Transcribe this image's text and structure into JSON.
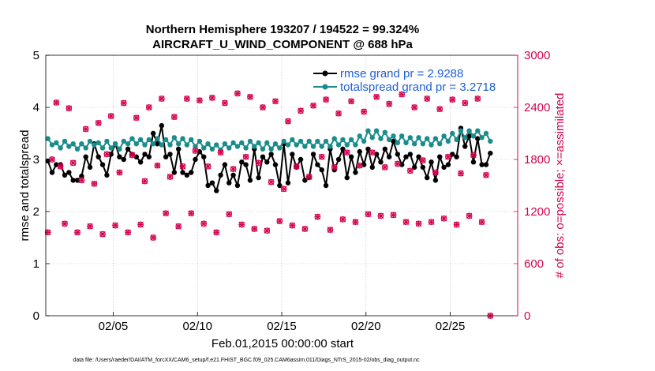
{
  "chart_data": {
    "type": "line",
    "title": "Northern Hemisphere 193207 / 194522 = 99.324%",
    "subtitle": "AIRCRAFT_U_WIND_COMPONENT @ 688 hPa",
    "xlabel": "Feb.01,2015 00:00:00 start",
    "ylabel": "rmse and totalspread",
    "ylabel_right": "# of obs: o=possible; ×=assimilated",
    "xlim": [
      1,
      29
    ],
    "ylim": [
      0,
      5
    ],
    "ylim_right": [
      0,
      3000
    ],
    "x_ticks": [
      5,
      10,
      15,
      20,
      25
    ],
    "x_tick_labels": [
      "02/05",
      "02/10",
      "02/15",
      "02/20",
      "02/25"
    ],
    "y_ticks": [
      0,
      1,
      2,
      3,
      4,
      5
    ],
    "y_tick_labels": [
      "0",
      "1",
      "2",
      "3",
      "4",
      "5"
    ],
    "y_right_ticks": [
      0,
      600,
      1200,
      1800,
      2400,
      3000
    ],
    "y_right_tick_labels": [
      "0",
      "600",
      "1200",
      "1800",
      "2400",
      "3000"
    ],
    "grid": true,
    "legend_position": "top-right",
    "time_step_days": 0.25,
    "x_start": 1.125,
    "series": [
      {
        "name": "rmse grand pr = 2.9288",
        "axis": "left",
        "color": "#000000",
        "marker": "filled-circle",
        "values": [
          2.97,
          2.75,
          2.9,
          2.9,
          2.7,
          2.75,
          2.6,
          2.6,
          2.68,
          3.05,
          2.85,
          3.3,
          3.05,
          2.9,
          2.7,
          3.1,
          3.3,
          3.05,
          3.0,
          3.2,
          3.1,
          3.05,
          2.95,
          3.1,
          3.05,
          3.5,
          3.3,
          3.65,
          3.05,
          3.1,
          2.75,
          3.2,
          2.75,
          2.7,
          2.75,
          3.0,
          3.15,
          3.05,
          2.5,
          2.55,
          2.4,
          2.7,
          2.9,
          2.55,
          2.7,
          2.5,
          2.95,
          2.9,
          2.6,
          3.2,
          2.65,
          3.05,
          2.95,
          3.1,
          2.9,
          2.5,
          3.3,
          2.55,
          3.1,
          2.85,
          3.0,
          2.6,
          2.65,
          3.1,
          2.9,
          2.8,
          2.5,
          3.2,
          2.8,
          3.0,
          3.2,
          2.65,
          3.05,
          2.75,
          3.15,
          2.9,
          3.2,
          2.85,
          3.1,
          2.95,
          3.2,
          3.05,
          3.35,
          3.1,
          2.9,
          3.05,
          3.1,
          2.85,
          3.05,
          2.85,
          2.65,
          2.95,
          2.6,
          3.05,
          2.85,
          2.9,
          3.1,
          3.05,
          3.6,
          3.25,
          3.45,
          2.95,
          3.4,
          2.9,
          2.9,
          3.12
        ]
      },
      {
        "name": "totalspread grand pr = 3.2718",
        "axis": "left",
        "color": "#1a8c8c",
        "marker": "filled-circle",
        "values": [
          3.4,
          3.28,
          3.32,
          3.22,
          3.35,
          3.25,
          3.3,
          3.2,
          3.3,
          3.22,
          3.35,
          3.28,
          3.32,
          3.22,
          3.35,
          3.22,
          3.3,
          3.2,
          3.35,
          3.3,
          3.4,
          3.3,
          3.38,
          3.28,
          3.38,
          3.3,
          3.4,
          3.28,
          3.38,
          3.28,
          3.42,
          3.3,
          3.4,
          3.28,
          3.38,
          3.25,
          3.35,
          3.22,
          3.3,
          3.2,
          3.28,
          3.18,
          3.3,
          3.22,
          3.32,
          3.25,
          3.32,
          3.22,
          3.35,
          3.25,
          3.32,
          3.2,
          3.32,
          3.2,
          3.3,
          3.22,
          3.35,
          3.28,
          3.38,
          3.28,
          3.35,
          3.25,
          3.35,
          3.25,
          3.35,
          3.25,
          3.35,
          3.25,
          3.4,
          3.28,
          3.38,
          3.28,
          3.38,
          3.28,
          3.45,
          3.35,
          3.55,
          3.42,
          3.55,
          3.4,
          3.52,
          3.38,
          3.45,
          3.32,
          3.45,
          3.32,
          3.42,
          3.3,
          3.42,
          3.3,
          3.4,
          3.28,
          3.4,
          3.3,
          3.45,
          3.35,
          3.5,
          3.38,
          3.55,
          3.42,
          3.55,
          3.45,
          3.55,
          3.42,
          3.5,
          3.35
        ]
      },
      {
        "name": "obs possible",
        "axis": "right",
        "color": "#d4004f",
        "marker": "circle",
        "values": [
          960,
          1800,
          2455,
          1720,
          1060,
          2390,
          1760,
          960,
          1560,
          2150,
          1030,
          1520,
          2220,
          940,
          1860,
          2300,
          1040,
          1650,
          2450,
          960,
          1850,
          2280,
          1050,
          1550,
          2400,
          900,
          1730,
          2500,
          1180,
          1600,
          2290,
          1030,
          1720,
          2500,
          1180,
          1900,
          2480,
          1060,
          1720,
          2510,
          960,
          1880,
          2450,
          1170,
          1690,
          2560,
          1050,
          1830,
          2520,
          1000,
          1760,
          2400,
          980,
          1540,
          2470,
          1090,
          1460,
          2240,
          1040,
          1720,
          2360,
          1000,
          1600,
          2420,
          1140,
          1830,
          2490,
          990,
          1710,
          2330,
          1110,
          1880,
          2470,
          1080,
          1730,
          2350,
          1170,
          1880,
          2520,
          1150,
          1710,
          2440,
          1160,
          1750,
          2550,
          1080,
          1670,
          2400,
          1060,
          1790,
          2500,
          1080,
          1650,
          2380,
          1120,
          1830,
          2490,
          1050,
          1640,
          2450,
          1150,
          1850,
          2500,
          1080,
          1620,
          0
        ]
      },
      {
        "name": "obs assimilated",
        "axis": "right",
        "color": "#d4004f",
        "marker": "x",
        "values": [
          960,
          1800,
          2455,
          1720,
          1060,
          2390,
          1760,
          960,
          1560,
          2150,
          1030,
          1520,
          2220,
          940,
          1860,
          2300,
          1040,
          1650,
          2450,
          960,
          1850,
          2280,
          1050,
          1550,
          2400,
          900,
          1730,
          2500,
          1180,
          1600,
          2290,
          1030,
          1720,
          2500,
          1180,
          1900,
          2480,
          1060,
          1720,
          2510,
          960,
          1880,
          2450,
          1170,
          1690,
          2560,
          1050,
          1830,
          2520,
          1000,
          1760,
          2400,
          980,
          1540,
          2470,
          1090,
          1460,
          2240,
          1040,
          1720,
          2360,
          1000,
          1600,
          2420,
          1140,
          1830,
          2490,
          990,
          1710,
          2330,
          1110,
          1880,
          2470,
          1080,
          1730,
          2350,
          1170,
          1880,
          2520,
          1150,
          1710,
          2440,
          1160,
          1750,
          2550,
          1080,
          1670,
          2400,
          1060,
          1790,
          2500,
          1080,
          1650,
          2380,
          1120,
          1830,
          2490,
          1050,
          1640,
          2450,
          1150,
          1850,
          2500,
          1080,
          1620,
          0
        ]
      }
    ],
    "footer": "data file: /Users/raeder/DAI/ATM_forcXX/CAM6_setup/f.e21.FHIST_BGC.f09_025.CAM6assim.011/Diags_NTrS_2015-02/obs_diag_output.nc"
  }
}
